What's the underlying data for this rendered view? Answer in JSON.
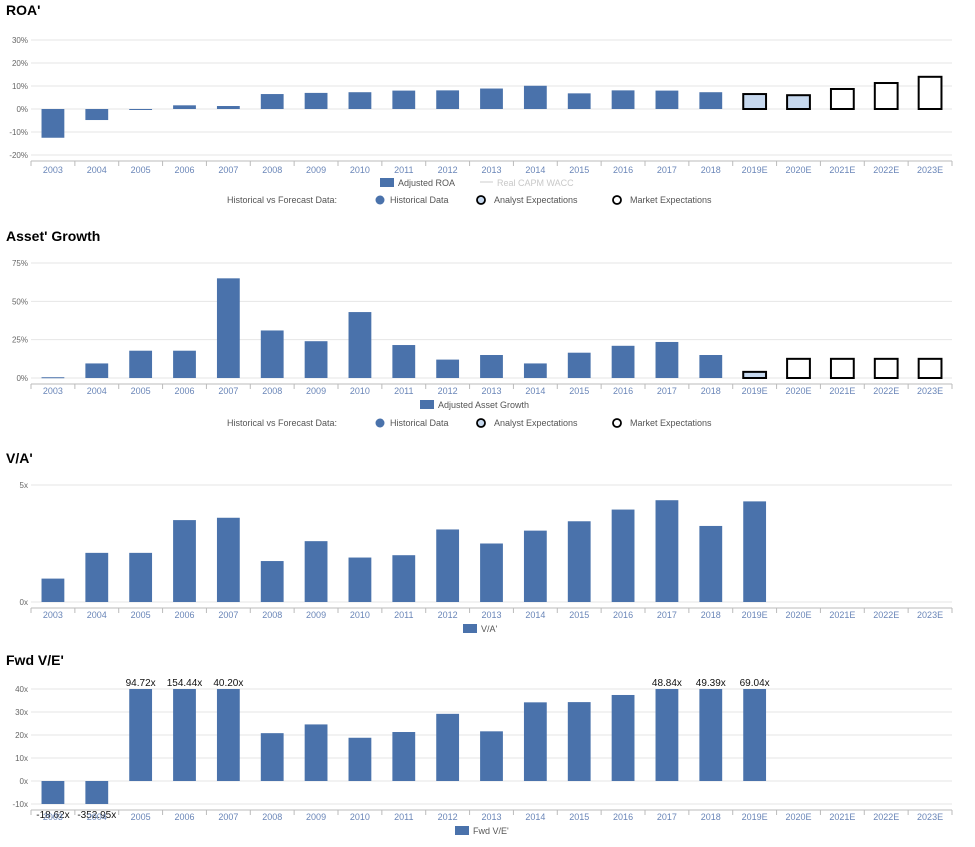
{
  "colors": {
    "bar": "#4a72ab",
    "forecast_fill": "#c6d8ee",
    "forecast_stroke": "#000000",
    "grid": "#e6e6e6",
    "axis": "#bbbbbb",
    "category": "#6a86b8"
  },
  "legend_common": {
    "label": "Historical vs Forecast Data:",
    "historical": "Historical Data",
    "analyst": "Analyst Expectations",
    "market": "Market Expectations"
  },
  "chart_data": [
    {
      "id": "roa",
      "type": "bar",
      "title": "ROA'",
      "categories": [
        "2003",
        "2004",
        "2005",
        "2006",
        "2007",
        "2008",
        "2009",
        "2010",
        "2011",
        "2012",
        "2013",
        "2014",
        "2015",
        "2016",
        "2017",
        "2018",
        "2019E",
        "2020E",
        "2021E",
        "2022E",
        "2023E"
      ],
      "values": [
        -12.5,
        -4.8,
        -0.4,
        1.6,
        1.3,
        6.5,
        7.0,
        7.3,
        8.0,
        8.1,
        8.9,
        10.1,
        6.8,
        8.1,
        8.0,
        7.3,
        6.5,
        6.0,
        8.7,
        11.3,
        14.0
      ],
      "kinds": [
        "h",
        "h",
        "h",
        "h",
        "h",
        "h",
        "h",
        "h",
        "h",
        "h",
        "h",
        "h",
        "h",
        "h",
        "h",
        "h",
        "a",
        "a",
        "m",
        "m",
        "m"
      ],
      "ylim": [
        -20,
        30
      ],
      "yticks": [
        -20,
        -10,
        0,
        10,
        20,
        30
      ],
      "ytick_labels": [
        "-20%",
        "-10%",
        "0%",
        "10%",
        "20%",
        "30%"
      ],
      "legend_series": "Adjusted ROA",
      "legend_faded": "Real CAPM WACC",
      "show_forecast_legend": true
    },
    {
      "id": "asset_growth",
      "type": "bar",
      "title": "Asset' Growth",
      "categories": [
        "2003",
        "2004",
        "2005",
        "2006",
        "2007",
        "2008",
        "2009",
        "2010",
        "2011",
        "2012",
        "2013",
        "2014",
        "2015",
        "2016",
        "2017",
        "2018",
        "2019E",
        "2020E",
        "2021E",
        "2022E",
        "2023E"
      ],
      "values": [
        0.5,
        9.5,
        17.8,
        17.8,
        65,
        31,
        24,
        43,
        21.5,
        12,
        15,
        9.5,
        16.5,
        21,
        23.5,
        15,
        4,
        12.5,
        12.5,
        12.5,
        12.5
      ],
      "kinds": [
        "h",
        "h",
        "h",
        "h",
        "h",
        "h",
        "h",
        "h",
        "h",
        "h",
        "h",
        "h",
        "h",
        "h",
        "h",
        "h",
        "a",
        "m",
        "m",
        "m",
        "m"
      ],
      "ylim": [
        0,
        75
      ],
      "yticks": [
        0,
        25,
        50,
        75
      ],
      "ytick_labels": [
        "0%",
        "25%",
        "50%",
        "75%"
      ],
      "legend_series": "Adjusted Asset Growth",
      "show_forecast_legend": true
    },
    {
      "id": "va",
      "type": "bar",
      "title": "V/A'",
      "categories": [
        "2003",
        "2004",
        "2005",
        "2006",
        "2007",
        "2008",
        "2009",
        "2010",
        "2011",
        "2012",
        "2013",
        "2014",
        "2015",
        "2016",
        "2017",
        "2018",
        "2019E",
        "2020E",
        "2021E",
        "2022E",
        "2023E"
      ],
      "values": [
        1.0,
        2.1,
        2.1,
        3.5,
        3.6,
        1.75,
        2.6,
        1.9,
        2.0,
        3.1,
        2.5,
        3.05,
        3.45,
        3.95,
        4.35,
        3.25,
        4.3,
        null,
        null,
        null,
        null
      ],
      "kinds": [
        "h",
        "h",
        "h",
        "h",
        "h",
        "h",
        "h",
        "h",
        "h",
        "h",
        "h",
        "h",
        "h",
        "h",
        "h",
        "h",
        "h",
        "h",
        "h",
        "h",
        "h"
      ],
      "ylim": [
        0,
        5
      ],
      "yticks": [
        0,
        5
      ],
      "ytick_labels": [
        "0x",
        "5x"
      ],
      "legend_series": "V/A'",
      "show_forecast_legend": false
    },
    {
      "id": "fwd_ve",
      "type": "bar",
      "title": "Fwd V/E'",
      "categories": [
        "2003",
        "2004",
        "2005",
        "2006",
        "2007",
        "2008",
        "2009",
        "2010",
        "2011",
        "2012",
        "2013",
        "2014",
        "2015",
        "2016",
        "2017",
        "2018",
        "2019E",
        "2020E",
        "2021E",
        "2022E",
        "2023E"
      ],
      "values": [
        -18.62,
        -352.95,
        94.72,
        154.44,
        40.2,
        20.8,
        24.6,
        18.8,
        21.3,
        29.2,
        21.6,
        34.2,
        34.3,
        37.4,
        48.84,
        49.39,
        69.04,
        null,
        null,
        null,
        null
      ],
      "kinds": [
        "h",
        "h",
        "h",
        "h",
        "h",
        "h",
        "h",
        "h",
        "h",
        "h",
        "h",
        "h",
        "h",
        "h",
        "h",
        "h",
        "h",
        "h",
        "h",
        "h",
        "h"
      ],
      "data_labels": [
        "-18.62x",
        "-352.95x",
        "94.72x",
        "154.44x",
        "40.20x",
        "",
        "",
        "",
        "",
        "",
        "",
        "",
        "",
        "",
        "48.84x",
        "49.39x",
        "69.04x",
        "",
        "",
        "",
        ""
      ],
      "ylim": [
        -10,
        40
      ],
      "yticks": [
        -10,
        0,
        10,
        20,
        30,
        40
      ],
      "ytick_labels": [
        "-10x",
        "0x",
        "10x",
        "20x",
        "30x",
        "40x"
      ],
      "legend_series": "Fwd V/E'",
      "show_forecast_legend": false
    }
  ]
}
